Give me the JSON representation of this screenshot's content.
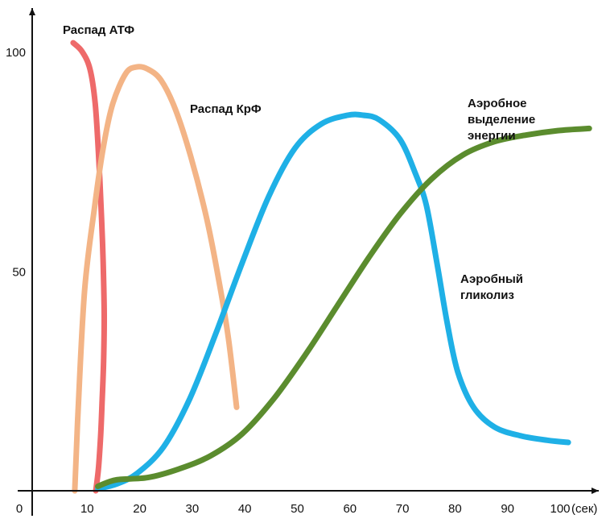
{
  "chart_data": {
    "type": "line",
    "x_ticks": [
      {
        "value": 10,
        "label": "10"
      },
      {
        "value": 20,
        "label": "20"
      },
      {
        "value": 30,
        "label": "30"
      },
      {
        "value": 40,
        "label": "40"
      },
      {
        "value": 50,
        "label": "50"
      },
      {
        "value": 60,
        "label": "60"
      },
      {
        "value": 70,
        "label": "70"
      },
      {
        "value": 80,
        "label": "80"
      },
      {
        "value": 90,
        "label": "90"
      },
      {
        "value": 100,
        "label": "100"
      }
    ],
    "origin_label": "0",
    "x_unit": "(сек)",
    "y_ticks": [
      {
        "value": 50,
        "label": "50"
      },
      {
        "value": 100,
        "label": "100"
      }
    ],
    "xlim": [
      0,
      108
    ],
    "ylim": [
      0,
      110
    ],
    "grid": false,
    "series": [
      {
        "name": "Распад АТФ",
        "color": "#ee6a6a",
        "x": [
          7.8,
          9.5,
          11.0,
          12.0,
          12.7,
          13.2,
          13.5,
          13.7,
          13.6,
          13.3,
          13.0,
          12.6,
          12.1
        ],
        "y": [
          102,
          100,
          96,
          88,
          75,
          62,
          52,
          40,
          30,
          20,
          12,
          5,
          0
        ]
      },
      {
        "name": "Распад КрФ",
        "color": "#f3b486",
        "x": [
          8.1,
          8.8,
          10.0,
          11.8,
          13.5,
          15.3,
          17.8,
          19.9,
          22.0,
          24.5,
          27.2,
          30.2,
          33.2,
          35.5,
          37.3,
          38.9
        ],
        "y": [
          0,
          20,
          46,
          64,
          78,
          88,
          95,
          96.5,
          96,
          93.5,
          87,
          76,
          62,
          48,
          35,
          19
        ]
      },
      {
        "name": "Аэробное выделение энергии",
        "color": "#1fb0e6",
        "x": [
          12.5,
          16,
          20,
          25,
          30,
          35,
          40,
          45,
          50,
          55,
          60,
          63,
          66,
          70,
          73,
          75,
          77,
          79,
          81,
          84,
          88,
          93,
          98,
          102
        ],
        "y": [
          0.5,
          1.5,
          4,
          10,
          21,
          36,
          52,
          67,
          78,
          83.5,
          85.5,
          85.5,
          84.5,
          80,
          72,
          65,
          52,
          38,
          27,
          19,
          14.5,
          12.5,
          11.5,
          11
        ]
      },
      {
        "name": "Аэробный гликолиз",
        "color": "#5b8c2e",
        "x": [
          12.5,
          16,
          22,
          28,
          34,
          40,
          46,
          52,
          58,
          64,
          70,
          76,
          82,
          88,
          94,
          100,
          106
        ],
        "y": [
          1,
          2.5,
          3,
          5,
          8,
          13,
          21,
          31,
          42,
          53,
          63,
          71,
          76.5,
          79.5,
          81,
          82,
          82.5
        ]
      }
    ],
    "annotations": [
      {
        "series": 0,
        "lines": [
          "Распад АТФ"
        ]
      },
      {
        "series": 1,
        "lines": [
          "Распад КрФ"
        ]
      },
      {
        "series": 2,
        "lines": [
          "Аэробное",
          "выделение",
          "энергии"
        ]
      },
      {
        "series": 3,
        "lines": [
          "Аэробный",
          "гликолиз"
        ]
      }
    ]
  }
}
